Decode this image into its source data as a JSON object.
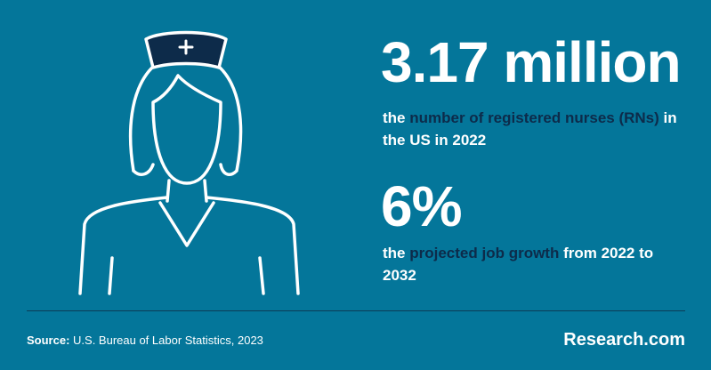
{
  "stats": [
    {
      "value": "3.17 million",
      "description": [
        "the ",
        "number of registered nurses (RNs)",
        " in the US in 2022"
      ]
    },
    {
      "value": "6%",
      "description": [
        "the ",
        "projected job growth",
        " from 2022 to 2032"
      ]
    }
  ],
  "footer": {
    "source_label": "Source:",
    "source_text": " U.S. Bureau of Labor Statistics, 2023",
    "brand": "Research.com"
  }
}
